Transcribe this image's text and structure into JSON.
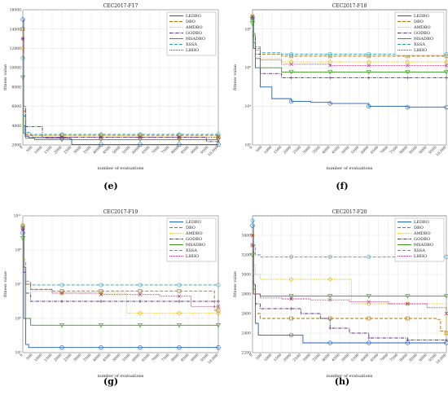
{
  "legend_names": [
    "LEDBO",
    "DBO",
    "AMDBO",
    "GODBO",
    "MSADBO",
    "XSSA",
    "LHHO"
  ],
  "series_colors": [
    "#1f5fbf",
    "#b06c00",
    "#e8b400",
    "#5a2a82",
    "#3a9a20",
    "#2aa7c7",
    "#a0286a"
  ],
  "series_dash": [
    "",
    "4,2",
    "1,1.2",
    "4,1.2,1,1.2",
    "",
    "4,2",
    "1,1"
  ],
  "chart_data": [
    {
      "type": "line",
      "panel": "e",
      "caption": "(e)",
      "title": "CEC2017-F17",
      "xlabel": "number of evaluations",
      "ylabel": "fitness value",
      "xlim": [
        0,
        10000
      ],
      "ylim": [
        2000,
        16000
      ],
      "y_scale": "linear",
      "x_ticks": [
        0,
        500,
        1000,
        1500,
        2000,
        2500,
        3000,
        3500,
        4000,
        4500,
        5000,
        5500,
        6000,
        6500,
        7000,
        7500,
        8000,
        8500,
        9000,
        9500,
        10000
      ],
      "x_tick_labels": [
        "0",
        "500",
        "1000",
        "1500",
        "2000",
        "2500",
        "3000",
        "3500",
        "4000",
        "4500",
        "5000",
        "5500",
        "6000",
        "6500",
        "7000",
        "7500",
        "8000",
        "8500",
        "9000",
        "9500",
        "10,000"
      ],
      "y_ticks": [
        2000,
        4000,
        6000,
        8000,
        10000,
        12000,
        14000,
        16000
      ],
      "y_tick_labels": [
        "2000",
        "4000",
        "6000",
        "8000",
        "10000",
        "12000",
        "14000",
        "16000"
      ],
      "legend_position": "top-right",
      "grid": true,
      "series": [
        {
          "name": "LEDBO",
          "x": [
            0,
            40,
            120,
            300,
            1200,
            2400,
            2500,
            10000
          ],
          "y": [
            15000,
            4000,
            2900,
            2750,
            2700,
            2650,
            2050,
            2050
          ]
        },
        {
          "name": "DBO",
          "x": [
            0,
            40,
            150,
            400,
            10000
          ],
          "y": [
            14000,
            5500,
            3100,
            3000,
            2900
          ]
        },
        {
          "name": "AMDBO",
          "x": [
            0,
            40,
            150,
            400,
            6000,
            6100,
            10000
          ],
          "y": [
            12000,
            5200,
            3200,
            3000,
            2950,
            2750,
            2750
          ]
        },
        {
          "name": "GODBO",
          "x": [
            0,
            40,
            150,
            900,
            1000,
            9300,
            9400,
            10000
          ],
          "y": [
            13000,
            6000,
            3900,
            3900,
            2800,
            2750,
            2350,
            2350
          ]
        },
        {
          "name": "MSADBO",
          "x": [
            0,
            40,
            150,
            600,
            10000
          ],
          "y": [
            9000,
            3200,
            2700,
            2550,
            2550
          ]
        },
        {
          "name": "XSSA",
          "x": [
            0,
            40,
            150,
            400,
            10000
          ],
          "y": [
            11000,
            5000,
            3300,
            3100,
            3100
          ]
        },
        {
          "name": "LHHO",
          "x": [
            0,
            40,
            150,
            500,
            10000
          ],
          "y": [
            13000,
            5000,
            3000,
            2800,
            2800
          ]
        }
      ]
    },
    {
      "type": "line",
      "panel": "f",
      "caption": "(f)",
      "title": "CEC2017-F18",
      "xlabel": "number of evaluations",
      "ylabel": "fitness value",
      "xlim": [
        0,
        10000
      ],
      "ylim": [
        100,
        1000000000
      ],
      "y_scale": "log",
      "x_ticks": [
        0,
        500,
        1000,
        1500,
        2000,
        2500,
        3000,
        3500,
        4000,
        4500,
        5000,
        5500,
        6000,
        6500,
        7000,
        7500,
        8000,
        8500,
        9000,
        9500,
        10000
      ],
      "x_tick_labels": [
        "0",
        "500",
        "1000",
        "1500",
        "2000",
        "2500",
        "3000",
        "3500",
        "4000",
        "4500",
        "5000",
        "5500",
        "6000",
        "6500",
        "7000",
        "7500",
        "8000",
        "8500",
        "9000",
        "9500",
        "10,000"
      ],
      "y_ticks": [
        100,
        10000,
        1000000,
        100000000
      ],
      "y_tick_labels": [
        "10²",
        "10⁴",
        "10⁶",
        "10⁸"
      ],
      "legend_position": "top-right",
      "grid": true,
      "series": [
        {
          "name": "LEDBO",
          "x": [
            0,
            50,
            150,
            400,
            1000,
            2000,
            3000,
            4000,
            6000,
            8000,
            10000
          ],
          "y": [
            400000000,
            10000000,
            1000000,
            100000,
            25000,
            18000,
            16000,
            14000,
            10000,
            9000,
            9000
          ]
        },
        {
          "name": "DBO",
          "x": [
            0,
            50,
            150,
            400,
            1500,
            10000
          ],
          "y": [
            300000000,
            50000000,
            10000000,
            5000000,
            4000000,
            4000000
          ]
        },
        {
          "name": "AMDBO",
          "x": [
            0,
            50,
            150,
            400,
            1500,
            10000
          ],
          "y": [
            500000000,
            60000000,
            10000000,
            3000000,
            2000000,
            2000000
          ]
        },
        {
          "name": "GODBO",
          "x": [
            0,
            50,
            150,
            400,
            1500,
            10000
          ],
          "y": [
            400000000,
            30000000,
            5000000,
            500000,
            300000,
            300000
          ]
        },
        {
          "name": "MSADBO",
          "x": [
            0,
            50,
            150,
            400,
            1500,
            10000
          ],
          "y": [
            200000000,
            20000000,
            3000000,
            1000000,
            600000,
            600000
          ]
        },
        {
          "name": "XSSA",
          "x": [
            0,
            50,
            150,
            400,
            1500,
            10000
          ],
          "y": [
            350000000,
            60000000,
            12000000,
            6000000,
            5000000,
            5000000
          ]
        },
        {
          "name": "LHHO",
          "x": [
            0,
            50,
            150,
            400,
            1500,
            4000,
            10000
          ],
          "y": [
            450000000,
            40000000,
            8000000,
            2500000,
            1500000,
            1300000,
            1300000
          ]
        }
      ]
    },
    {
      "type": "line",
      "panel": "g",
      "caption": "(g)",
      "title": "CEC2017-F19",
      "xlabel": "number of evaluations",
      "ylabel": "fitness value",
      "xlim": [
        0,
        10000
      ],
      "ylim": [
        1000,
        100000000000
      ],
      "y_scale": "log",
      "x_ticks": [
        0,
        500,
        1000,
        1500,
        2000,
        2500,
        3000,
        3500,
        4000,
        4500,
        5000,
        5500,
        6000,
        6500,
        7000,
        7500,
        8000,
        8500,
        9000,
        9500,
        10000
      ],
      "x_tick_labels": [
        "0",
        "500",
        "1000",
        "1500",
        "2000",
        "2500",
        "3000",
        "3500",
        "4000",
        "4500",
        "5000",
        "5500",
        "6000",
        "6500",
        "7000",
        "7500",
        "8000",
        "8500",
        "9000",
        "9500",
        "10,000"
      ],
      "y_ticks": [
        1000,
        100000,
        10000000,
        1000000000,
        100000000000
      ],
      "y_tick_labels": [
        "10³",
        "10⁵",
        "10⁷",
        "10⁹",
        "10¹¹"
      ],
      "legend_position": "top-right",
      "grid": true,
      "series": [
        {
          "name": "LEDBO",
          "x": [
            0,
            50,
            150,
            300,
            10000
          ],
          "y": [
            10000000000,
            100000,
            3000,
            2000,
            2000
          ]
        },
        {
          "name": "DBO",
          "x": [
            0,
            50,
            150,
            400,
            1500,
            9700,
            9800,
            10000
          ],
          "y": [
            20000000000,
            100000000,
            10000000,
            5000000,
            4000000,
            4000000,
            300000,
            300000
          ]
        },
        {
          "name": "AMDBO",
          "x": [
            0,
            50,
            150,
            400,
            1500,
            5200,
            5300,
            10000
          ],
          "y": [
            30000000000,
            300000000,
            10000000,
            4000000,
            3000000,
            3000000,
            200000,
            200000
          ]
        },
        {
          "name": "GODBO",
          "x": [
            0,
            50,
            150,
            400,
            1500,
            10000
          ],
          "y": [
            15000000000,
            50000000,
            3000000,
            1000000,
            1000000,
            1000000
          ]
        },
        {
          "name": "MSADBO",
          "x": [
            0,
            50,
            150,
            400,
            1500,
            10000
          ],
          "y": [
            5000000000,
            100000000,
            100000,
            40000,
            40000,
            40000
          ]
        },
        {
          "name": "XSSA",
          "x": [
            0,
            50,
            150,
            400,
            1500,
            10000
          ],
          "y": [
            25000000000,
            200000000,
            15000000,
            9000000,
            9000000,
            9000000
          ]
        },
        {
          "name": "LHHO",
          "x": [
            0,
            50,
            150,
            400,
            1500,
            4000,
            7000,
            8500,
            8600,
            10000
          ],
          "y": [
            20000000000,
            100000000,
            10000000,
            5000000,
            3000000,
            2500000,
            2000000,
            2000000,
            500000,
            500000
          ]
        }
      ]
    },
    {
      "type": "line",
      "panel": "h",
      "caption": "(h)",
      "title": "CEC2017-F20",
      "xlabel": "number of evaluations",
      "ylabel": "fitness value",
      "xlim": [
        0,
        10000
      ],
      "ylim": [
        2200,
        3600
      ],
      "y_scale": "linear",
      "x_ticks": [
        0,
        500,
        1000,
        1500,
        2000,
        2500,
        3000,
        3500,
        4000,
        4500,
        5000,
        5500,
        6000,
        6500,
        7000,
        7500,
        8000,
        8500,
        9000,
        9500,
        10000
      ],
      "x_tick_labels": [
        "0",
        "500",
        "1000",
        "1500",
        "2000",
        "2500",
        "3000",
        "3500",
        "4000",
        "4500",
        "5000",
        "5500",
        "6000",
        "6500",
        "7000",
        "7500",
        "8000",
        "8500",
        "9000",
        "9500",
        "10,000"
      ],
      "y_ticks": [
        2200,
        2400,
        2600,
        2800,
        3000,
        3200,
        3400
      ],
      "y_tick_labels": [
        "2200",
        "2400",
        "2600",
        "2800",
        "3000",
        "3200",
        "3400"
      ],
      "legend_position": "top-right",
      "grid": true,
      "series": [
        {
          "name": "LEDBO",
          "x": [
            0,
            50,
            150,
            300,
            2500,
            2600,
            10000
          ],
          "y": [
            3500,
            2800,
            2500,
            2380,
            2380,
            2300,
            2300
          ]
        },
        {
          "name": "DBO",
          "x": [
            0,
            50,
            150,
            400,
            9500,
            9700,
            10000
          ],
          "y": [
            3300,
            2800,
            2600,
            2550,
            2540,
            2420,
            2400
          ]
        },
        {
          "name": "AMDBO",
          "x": [
            0,
            50,
            150,
            400,
            5000,
            5100,
            9900,
            10000
          ],
          "y": [
            3400,
            3100,
            3000,
            2950,
            2950,
            2700,
            2700,
            2400
          ]
        },
        {
          "name": "GODBO",
          "x": [
            0,
            50,
            150,
            400,
            2500,
            3500,
            4000,
            5000,
            6000,
            7000,
            8000,
            10000
          ],
          "y": [
            3300,
            2900,
            2700,
            2650,
            2600,
            2550,
            2450,
            2400,
            2350,
            2350,
            2330,
            2330
          ]
        },
        {
          "name": "MSADBO",
          "x": [
            0,
            50,
            150,
            400,
            10000
          ],
          "y": [
            3200,
            2850,
            2800,
            2780,
            2780
          ]
        },
        {
          "name": "XSSA",
          "x": [
            0,
            50,
            150,
            400,
            10000
          ],
          "y": [
            3550,
            3300,
            3200,
            3180,
            3180
          ]
        },
        {
          "name": "LHHO",
          "x": [
            0,
            50,
            150,
            400,
            1500,
            3000,
            5000,
            7000,
            9000,
            10000
          ],
          "y": [
            3400,
            2900,
            2800,
            2760,
            2750,
            2740,
            2720,
            2700,
            2660,
            2600
          ]
        }
      ]
    }
  ]
}
